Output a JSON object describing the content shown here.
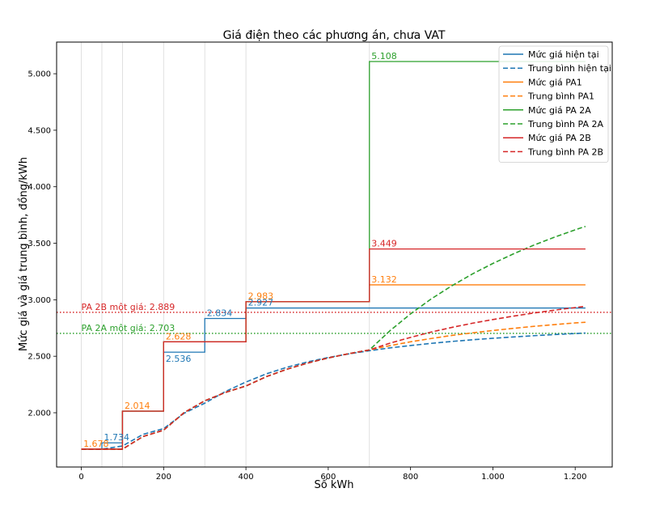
{
  "chart_data": {
    "type": "line",
    "title": "Giá điện theo các phương án, chưa VAT",
    "xlabel": "Số kWh",
    "ylabel": "Mức giá và giá trung bình, đồng/kWh",
    "xlim": [
      -60,
      1290
    ],
    "ylim": [
      1520,
      5280
    ],
    "x_ticks": [
      0,
      200,
      400,
      600,
      800,
      1000,
      1200
    ],
    "x_tick_labels": [
      "0",
      "200",
      "400",
      "600",
      "800",
      "1.000",
      "1.200"
    ],
    "y_ticks": [
      2000,
      2500,
      3000,
      3500,
      4000,
      4500,
      5000
    ],
    "y_tick_labels": [
      "2.000",
      "2.500",
      "3.000",
      "3.500",
      "4.000",
      "4.500",
      "5.000"
    ],
    "vertical_gridlines_x": [
      0,
      50,
      100,
      200,
      300,
      400,
      700
    ],
    "legend_position": "top-right",
    "series": [
      {
        "name": "Mức giá hiện tại",
        "style": "solid",
        "color": "#1f77b4",
        "x": [
          0,
          50,
          50,
          100,
          100,
          200,
          200,
          300,
          300,
          400,
          400,
          1225
        ],
        "y": [
          1678,
          1678,
          1734,
          1734,
          2014,
          2014,
          2536,
          2536,
          2834,
          2834,
          2927,
          2927
        ]
      },
      {
        "name": "Trung bình hiện tại",
        "style": "dashed",
        "color": "#1f77b4",
        "x": [
          0,
          50,
          100,
          150,
          200,
          250,
          300,
          350,
          400,
          450,
          500,
          550,
          600,
          650,
          700,
          750,
          800,
          850,
          900,
          950,
          1000,
          1050,
          1100,
          1150,
          1200,
          1225
        ],
        "y": [
          1678,
          1678,
          1706,
          1809,
          1860,
          1996,
          2085,
          2188,
          2272,
          2345,
          2403,
          2450,
          2489,
          2521,
          2549,
          2574,
          2595,
          2614,
          2631,
          2646,
          2659,
          2671,
          2682,
          2692,
          2701,
          2706
        ]
      },
      {
        "name": "Mức giá PA1",
        "style": "solid",
        "color": "#ff7f0e",
        "x": [
          0,
          100,
          100,
          200,
          200,
          400,
          400,
          700,
          700,
          1225
        ],
        "y": [
          1678,
          1678,
          2014,
          2014,
          2628,
          2628,
          2983,
          2983,
          3132,
          3132
        ]
      },
      {
        "name": "Trung bình PA1",
        "style": "dashed",
        "color": "#ff7f0e",
        "x": [
          0,
          50,
          100,
          150,
          200,
          250,
          300,
          350,
          400,
          450,
          500,
          550,
          600,
          650,
          700,
          750,
          800,
          850,
          900,
          950,
          1000,
          1050,
          1100,
          1150,
          1200,
          1225
        ],
        "y": [
          1678,
          1678,
          1678,
          1790,
          1846,
          2002,
          2106,
          2180,
          2237,
          2320,
          2386,
          2440,
          2485,
          2523,
          2556,
          2594,
          2628,
          2657,
          2684,
          2707,
          2728,
          2747,
          2765,
          2780,
          2795,
          2801
        ]
      },
      {
        "name": "Mức giá PA 2A",
        "style": "solid",
        "color": "#2ca02c",
        "x": [
          0,
          100,
          100,
          200,
          200,
          400,
          400,
          700,
          700,
          1225
        ],
        "y": [
          1678,
          1678,
          2014,
          2014,
          2628,
          2628,
          2983,
          2983,
          5108,
          5108
        ]
      },
      {
        "name": "Trung bình PA 2A",
        "style": "dashed",
        "color": "#2ca02c",
        "x": [
          0,
          50,
          100,
          150,
          200,
          250,
          300,
          350,
          400,
          450,
          500,
          550,
          600,
          650,
          700,
          750,
          800,
          850,
          900,
          950,
          1000,
          1050,
          1100,
          1150,
          1200,
          1225
        ],
        "y": [
          1678,
          1678,
          1678,
          1790,
          1846,
          2002,
          2106,
          2180,
          2237,
          2320,
          2386,
          2440,
          2485,
          2523,
          2556,
          2726,
          2875,
          3007,
          3123,
          3228,
          3321,
          3406,
          3484,
          3554,
          3619,
          3649
        ]
      },
      {
        "name": "Mức giá PA 2B",
        "style": "solid",
        "color": "#d62728",
        "x": [
          0,
          100,
          100,
          200,
          200,
          400,
          400,
          700,
          700,
          1225
        ],
        "y": [
          1678,
          1678,
          2014,
          2014,
          2628,
          2628,
          2983,
          2983,
          3449,
          3449
        ]
      },
      {
        "name": "Trung bình PA 2B",
        "style": "dashed",
        "color": "#d62728",
        "x": [
          0,
          50,
          100,
          150,
          200,
          250,
          300,
          350,
          400,
          450,
          500,
          550,
          600,
          650,
          700,
          750,
          800,
          850,
          900,
          950,
          1000,
          1050,
          1100,
          1150,
          1200,
          1225
        ],
        "y": [
          1678,
          1678,
          1678,
          1790,
          1846,
          2002,
          2106,
          2180,
          2237,
          2320,
          2386,
          2440,
          2485,
          2523,
          2556,
          2616,
          2667,
          2714,
          2755,
          2792,
          2825,
          2855,
          2883,
          2908,
          2931,
          2942
        ]
      }
    ],
    "reference_lines": [
      {
        "label": "PA 2B một giá: 2.889",
        "y": 2889,
        "color": "#d62728",
        "style": "dotted"
      },
      {
        "label": "PA 2A một giá: 2.703",
        "y": 2703,
        "color": "#2ca02c",
        "style": "dotted"
      }
    ],
    "annotations": [
      {
        "text": "1.678",
        "x": 5,
        "y": 1678,
        "color": "#ff7f0e",
        "anchor": "bottom"
      },
      {
        "text": "1.734",
        "x": 55,
        "y": 1734,
        "color": "#1f77b4",
        "anchor": "bottom"
      },
      {
        "text": "2.014",
        "x": 105,
        "y": 2014,
        "color": "#ff7f0e",
        "anchor": "bottom"
      },
      {
        "text": "2.536",
        "x": 205,
        "y": 2536,
        "color": "#1f77b4",
        "anchor": "top"
      },
      {
        "text": "2.628",
        "x": 205,
        "y": 2628,
        "color": "#ff7f0e",
        "anchor": "bottom"
      },
      {
        "text": "2.834",
        "x": 305,
        "y": 2834,
        "color": "#1f77b4",
        "anchor": "bottom"
      },
      {
        "text": "2.927",
        "x": 405,
        "y": 2927,
        "color": "#1f77b4",
        "anchor": "bottom"
      },
      {
        "text": "2.983",
        "x": 405,
        "y": 2983,
        "color": "#ff7f0e",
        "anchor": "bottom"
      },
      {
        "text": "3.132",
        "x": 705,
        "y": 3132,
        "color": "#ff7f0e",
        "anchor": "bottom"
      },
      {
        "text": "3.449",
        "x": 705,
        "y": 3449,
        "color": "#d62728",
        "anchor": "bottom"
      },
      {
        "text": "5.108",
        "x": 705,
        "y": 5108,
        "color": "#2ca02c",
        "anchor": "bottom"
      }
    ]
  }
}
